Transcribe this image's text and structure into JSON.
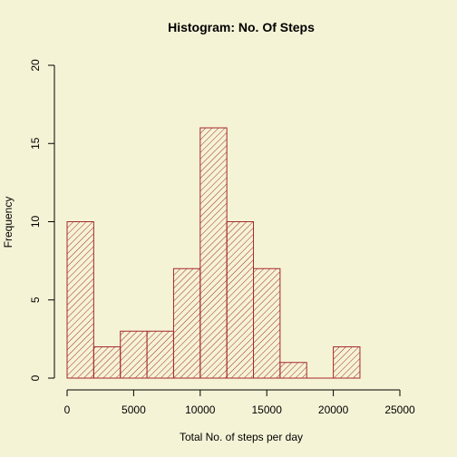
{
  "chart_data": {
    "type": "bar",
    "title": "Histogram: No. Of Steps",
    "xlabel": "Total No. of steps per day",
    "ylabel": "Frequency",
    "bins": [
      {
        "start": 0,
        "end": 2000,
        "count": 10
      },
      {
        "start": 2000,
        "end": 4000,
        "count": 2
      },
      {
        "start": 4000,
        "end": 6000,
        "count": 3
      },
      {
        "start": 6000,
        "end": 8000,
        "count": 3
      },
      {
        "start": 8000,
        "end": 10000,
        "count": 7
      },
      {
        "start": 10000,
        "end": 12000,
        "count": 16
      },
      {
        "start": 12000,
        "end": 14000,
        "count": 10
      },
      {
        "start": 14000,
        "end": 16000,
        "count": 7
      },
      {
        "start": 16000,
        "end": 18000,
        "count": 1
      },
      {
        "start": 18000,
        "end": 20000,
        "count": 0
      },
      {
        "start": 20000,
        "end": 22000,
        "count": 2
      }
    ],
    "xlim": [
      0,
      25000
    ],
    "ylim": [
      0,
      20
    ],
    "x_ticks": [
      "0",
      "5000",
      "10000",
      "15000",
      "20000",
      "25000"
    ],
    "y_ticks": [
      "0",
      "5",
      "10",
      "15",
      "20"
    ],
    "grid": false,
    "bar_color": "#a52a2a",
    "background_color": "#f5f3d6",
    "fill": "diagonal-hatch"
  }
}
